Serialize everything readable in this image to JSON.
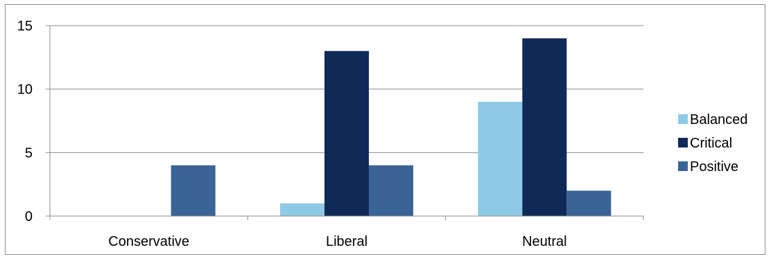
{
  "chart_data": {
    "type": "bar",
    "categories": [
      "Conservative",
      "Liberal",
      "Neutral"
    ],
    "series": [
      {
        "name": "Balanced",
        "values": [
          0,
          1,
          9
        ],
        "color": "#8ecae6"
      },
      {
        "name": "Critical",
        "values": [
          0,
          13,
          14
        ],
        "color": "#0f2a57"
      },
      {
        "name": "Positive",
        "values": [
          4,
          4,
          2
        ],
        "color": "#3a6496"
      }
    ],
    "yticks": [
      "0",
      "5",
      "10",
      "15"
    ],
    "ylim": [
      0,
      15
    ],
    "grid": true,
    "legend_position": "right",
    "title": "",
    "xlabel": "",
    "ylabel": ""
  }
}
